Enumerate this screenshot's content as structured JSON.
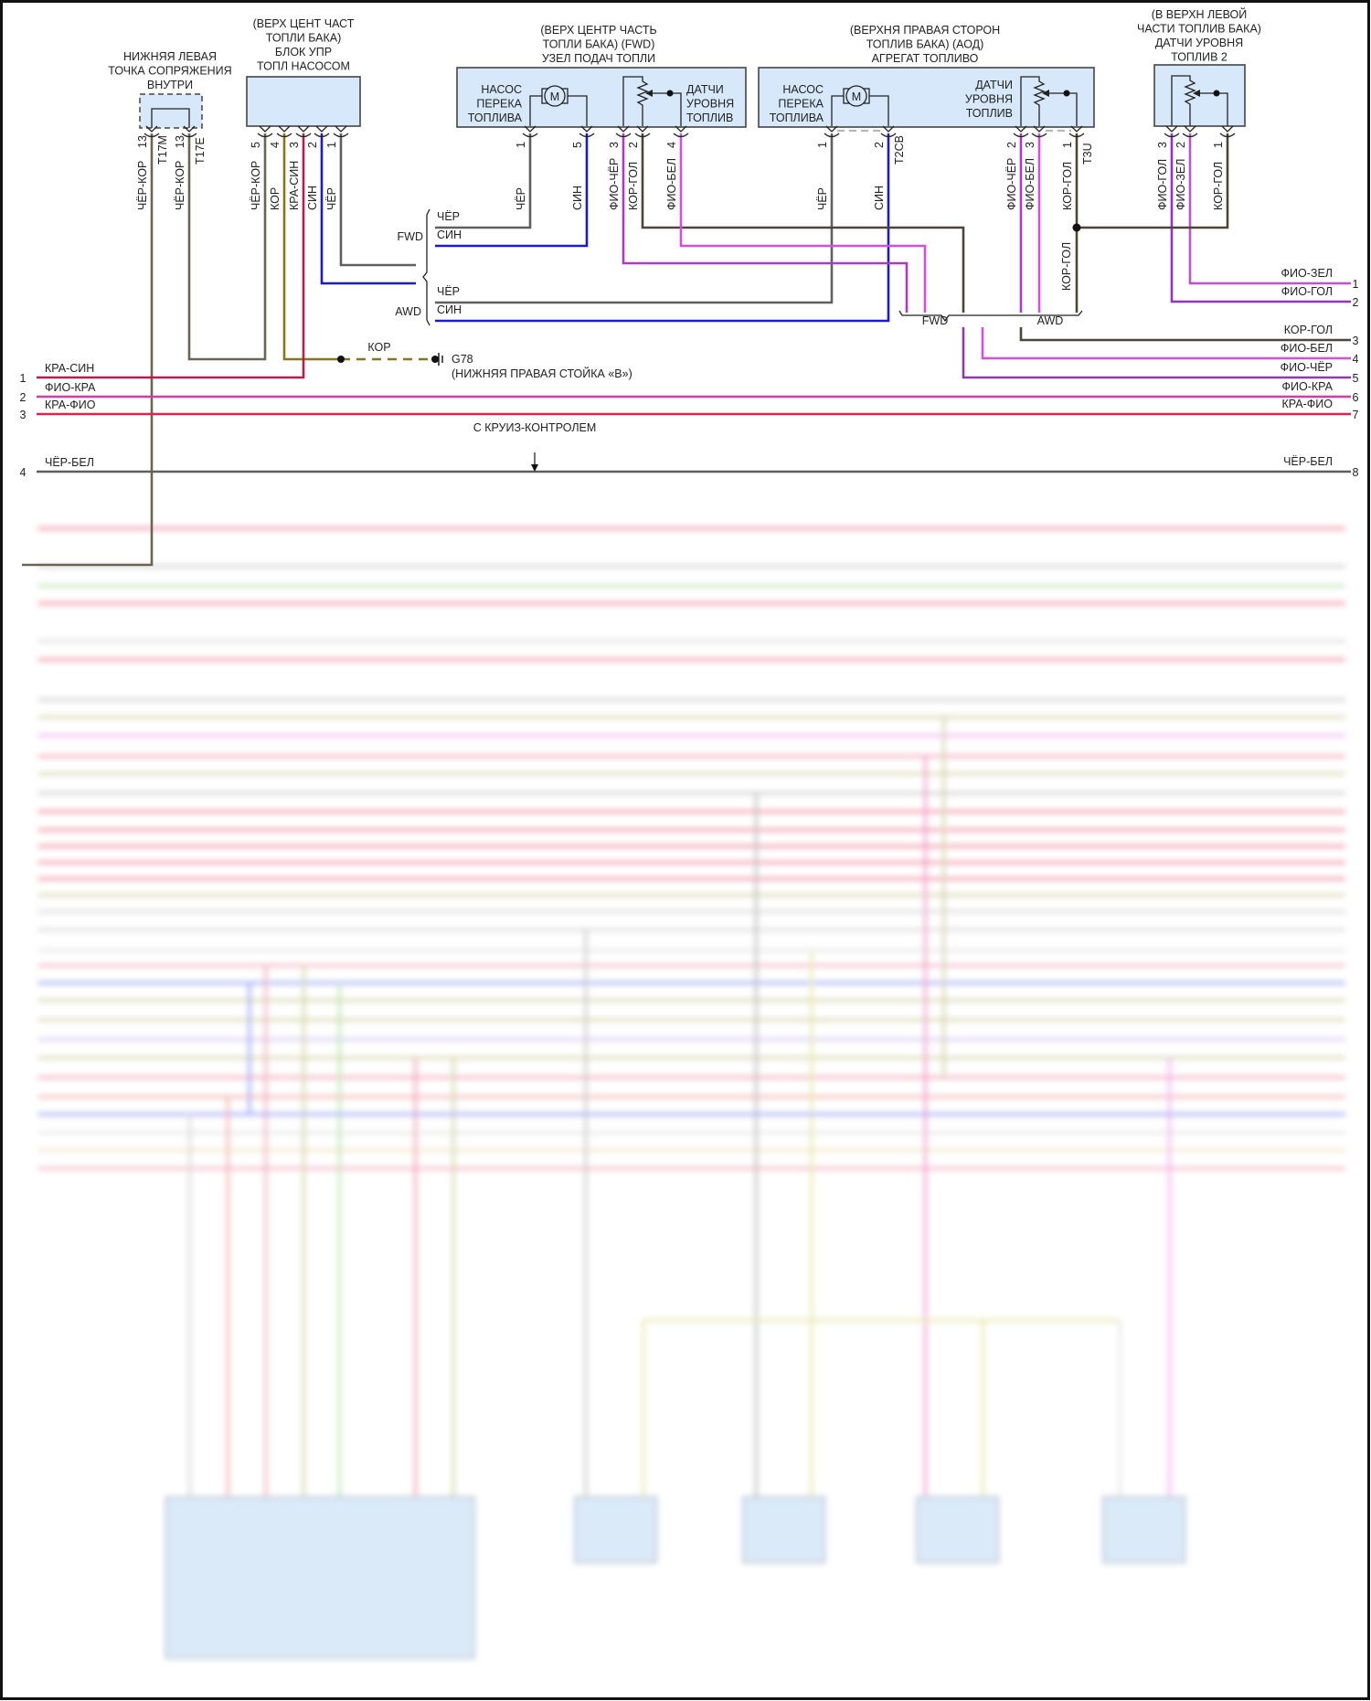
{
  "components": {
    "splice": {
      "title": [
        "НИЖНЯЯ ЛЕВАЯ",
        "ТОЧКА СОПРЯЖЕНИЯ",
        "ВНУТРИ"
      ],
      "pins": [
        {
          "num": "13",
          "wire": "ЧЁР-КОР",
          "conn": "T17M"
        },
        {
          "num": "13",
          "wire": "ЧЁР-КОР",
          "conn": "T17E"
        }
      ]
    },
    "pump_control": {
      "title": [
        "(ВЕРХ ЦЕНТ ЧАСТ",
        "ТОПЛИ БАКА)",
        "БЛОК УПР",
        "ТОПЛ НАСОСОМ"
      ],
      "pins": [
        {
          "num": "5",
          "wire": "ЧЁР-КОР"
        },
        {
          "num": "4",
          "wire": "КОР"
        },
        {
          "num": "3",
          "wire": "КРА-СИН"
        },
        {
          "num": "2",
          "wire": "СИН"
        },
        {
          "num": "1",
          "wire": "ЧЁР"
        }
      ]
    },
    "fwd_unit": {
      "title": [
        "(ВЕРХ ЦЕНТР ЧАСТЬ",
        "ТОПЛИ БАКА) (FWD)",
        "УЗЕЛ ПОДАЧ ТОПЛИ"
      ],
      "pump_label": [
        "НАСОС",
        "ПЕРЕКА",
        "ТОПЛИВА"
      ],
      "sensor_label": [
        "ДАТЧИ",
        "УРОВНЯ",
        "ТОПЛИВ"
      ],
      "motor": "M",
      "pins": [
        {
          "num": "1",
          "wire": "ЧЁР"
        },
        {
          "num": "5",
          "wire": "СИН"
        },
        {
          "num": "3",
          "wire": "ФИО-ЧЁР"
        },
        {
          "num": "2",
          "wire": "КОР-ГОЛ"
        },
        {
          "num": "4",
          "wire": "ФИО-БЕЛ"
        }
      ]
    },
    "awd_unit": {
      "title": [
        "(ВЕРХНЯ ПРАВАЯ СТОРОН",
        "ТОПЛИВ БАКА) (АОД)",
        "АГРЕГАТ ТОПЛИВО"
      ],
      "pump_label": [
        "НАСОС",
        "ПЕРЕКА",
        "ТОПЛИВА"
      ],
      "sensor_label": [
        "ДАТЧИ",
        "УРОВНЯ",
        "ТОПЛИВ"
      ],
      "motor": "M",
      "pins": [
        {
          "num": "1",
          "wire": "ЧЁР"
        },
        {
          "num": "2",
          "wire": "СИН",
          "conn": "T2CB"
        },
        {
          "num": "2",
          "wire": "ФИО-ЧЁР"
        },
        {
          "num": "3",
          "wire": "ФИО-БЕЛ"
        },
        {
          "num": "1",
          "wire": "КОР-ГОЛ",
          "conn": "T3U"
        }
      ]
    },
    "sensor2": {
      "title": [
        "(В ВЕРХН ЛЕВОЙ",
        "ЧАСТИ ТОПЛИВ БАКА)",
        "ДАТЧИ УРОВНЯ",
        "ТОПЛИВ 2"
      ],
      "pins": [
        {
          "num": "3",
          "wire": "ФИО-ГОЛ"
        },
        {
          "num": "2",
          "wire": "ФИО-ЗЕЛ"
        },
        {
          "num": "1",
          "wire": "КОР-ГОЛ"
        }
      ]
    }
  },
  "harness": {
    "fwd": {
      "label": "FWD",
      "wires": [
        "ЧЁР",
        "СИН"
      ]
    },
    "awd": {
      "label": "AWD",
      "wires": [
        "ЧЁР",
        "СИН"
      ]
    },
    "splice_wire": "КОР-ГОЛ",
    "bottom_brace": {
      "fwd": "FWD",
      "awd": "AWD"
    }
  },
  "ground": {
    "wire": "КОР",
    "id": "G78",
    "location": "(НИЖНЯЯ ПРАВАЯ СТОЙКА «В»)"
  },
  "left_lines": [
    {
      "num": "1",
      "label": "КРА-СИН",
      "color": "#b41f4b"
    },
    {
      "num": "2",
      "label": "ФИО-КРА",
      "color": "#d93aa8"
    },
    {
      "num": "3",
      "label": "КРА-ФИО",
      "color": "#e5204d"
    },
    {
      "num": "4",
      "label": "ЧЁР-БЕЛ",
      "color": "#5f5f5f"
    }
  ],
  "right_lines": [
    {
      "num": "1",
      "label": "ФИО-ЗЕЛ",
      "color": "#c34fd6"
    },
    {
      "num": "2",
      "label": "ФИО-ГОЛ",
      "color": "#9331c9"
    },
    {
      "num": "3",
      "label": "КОР-ГОЛ",
      "color": "#4d4638"
    },
    {
      "num": "4",
      "label": "ФИО-БЕЛ",
      "color": "#d24fe0"
    },
    {
      "num": "5",
      "label": "ФИО-ЧЁР",
      "color": "#8e3aa8"
    },
    {
      "num": "6",
      "label": "ФИО-КРА",
      "color": "#d93aa8"
    },
    {
      "num": "7",
      "label": "КРА-ФИО",
      "color": "#e5204d"
    },
    {
      "num": "8",
      "label": "ЧЁР-БЕЛ",
      "color": "#5f5f5f"
    }
  ],
  "note": "С КРУИЗ-КОНТРОЛЕМ"
}
